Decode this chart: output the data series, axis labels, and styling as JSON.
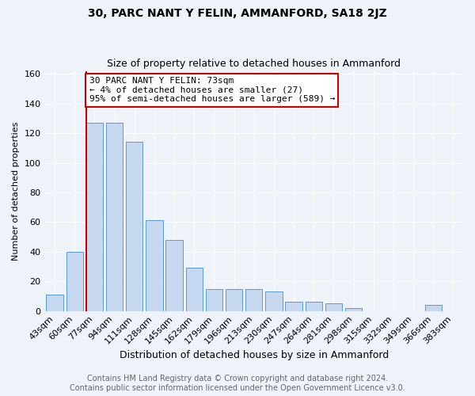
{
  "title": "30, PARC NANT Y FELIN, AMMANFORD, SA18 2JZ",
  "subtitle": "Size of property relative to detached houses in Ammanford",
  "xlabel": "Distribution of detached houses by size in Ammanford",
  "ylabel": "Number of detached properties",
  "categories": [
    "43sqm",
    "60sqm",
    "77sqm",
    "94sqm",
    "111sqm",
    "128sqm",
    "145sqm",
    "162sqm",
    "179sqm",
    "196sqm",
    "213sqm",
    "230sqm",
    "247sqm",
    "264sqm",
    "281sqm",
    "298sqm",
    "315sqm",
    "332sqm",
    "349sqm",
    "366sqm",
    "383sqm"
  ],
  "values": [
    11,
    40,
    127,
    127,
    114,
    61,
    48,
    29,
    15,
    15,
    15,
    13,
    6,
    6,
    5,
    2,
    0,
    0,
    0,
    4,
    0
  ],
  "bar_color": "#c5d8f0",
  "bar_edge_color": "#5b9bd5",
  "annotation_line1": "30 PARC NANT Y FELIN: 73sqm",
  "annotation_line2": "← 4% of detached houses are smaller (27)",
  "annotation_line3": "95% of semi-detached houses are larger (589) →",
  "annotation_box_color": "#ffffff",
  "annotation_box_edge": "#cc0000",
  "vline_color": "#cc0000",
  "vline_x_index": 2,
  "ylim": [
    0,
    162
  ],
  "yticks": [
    0,
    20,
    40,
    60,
    80,
    100,
    120,
    140,
    160
  ],
  "footer_line1": "Contains HM Land Registry data © Crown copyright and database right 2024.",
  "footer_line2": "Contains public sector information licensed under the Open Government Licence v3.0.",
  "bg_color": "#eef2f9",
  "grid_color": "#ffffff",
  "title_fontsize": 10,
  "subtitle_fontsize": 9,
  "ylabel_fontsize": 8,
  "xlabel_fontsize": 9,
  "tick_fontsize": 8,
  "annot_fontsize": 8,
  "footer_fontsize": 7
}
